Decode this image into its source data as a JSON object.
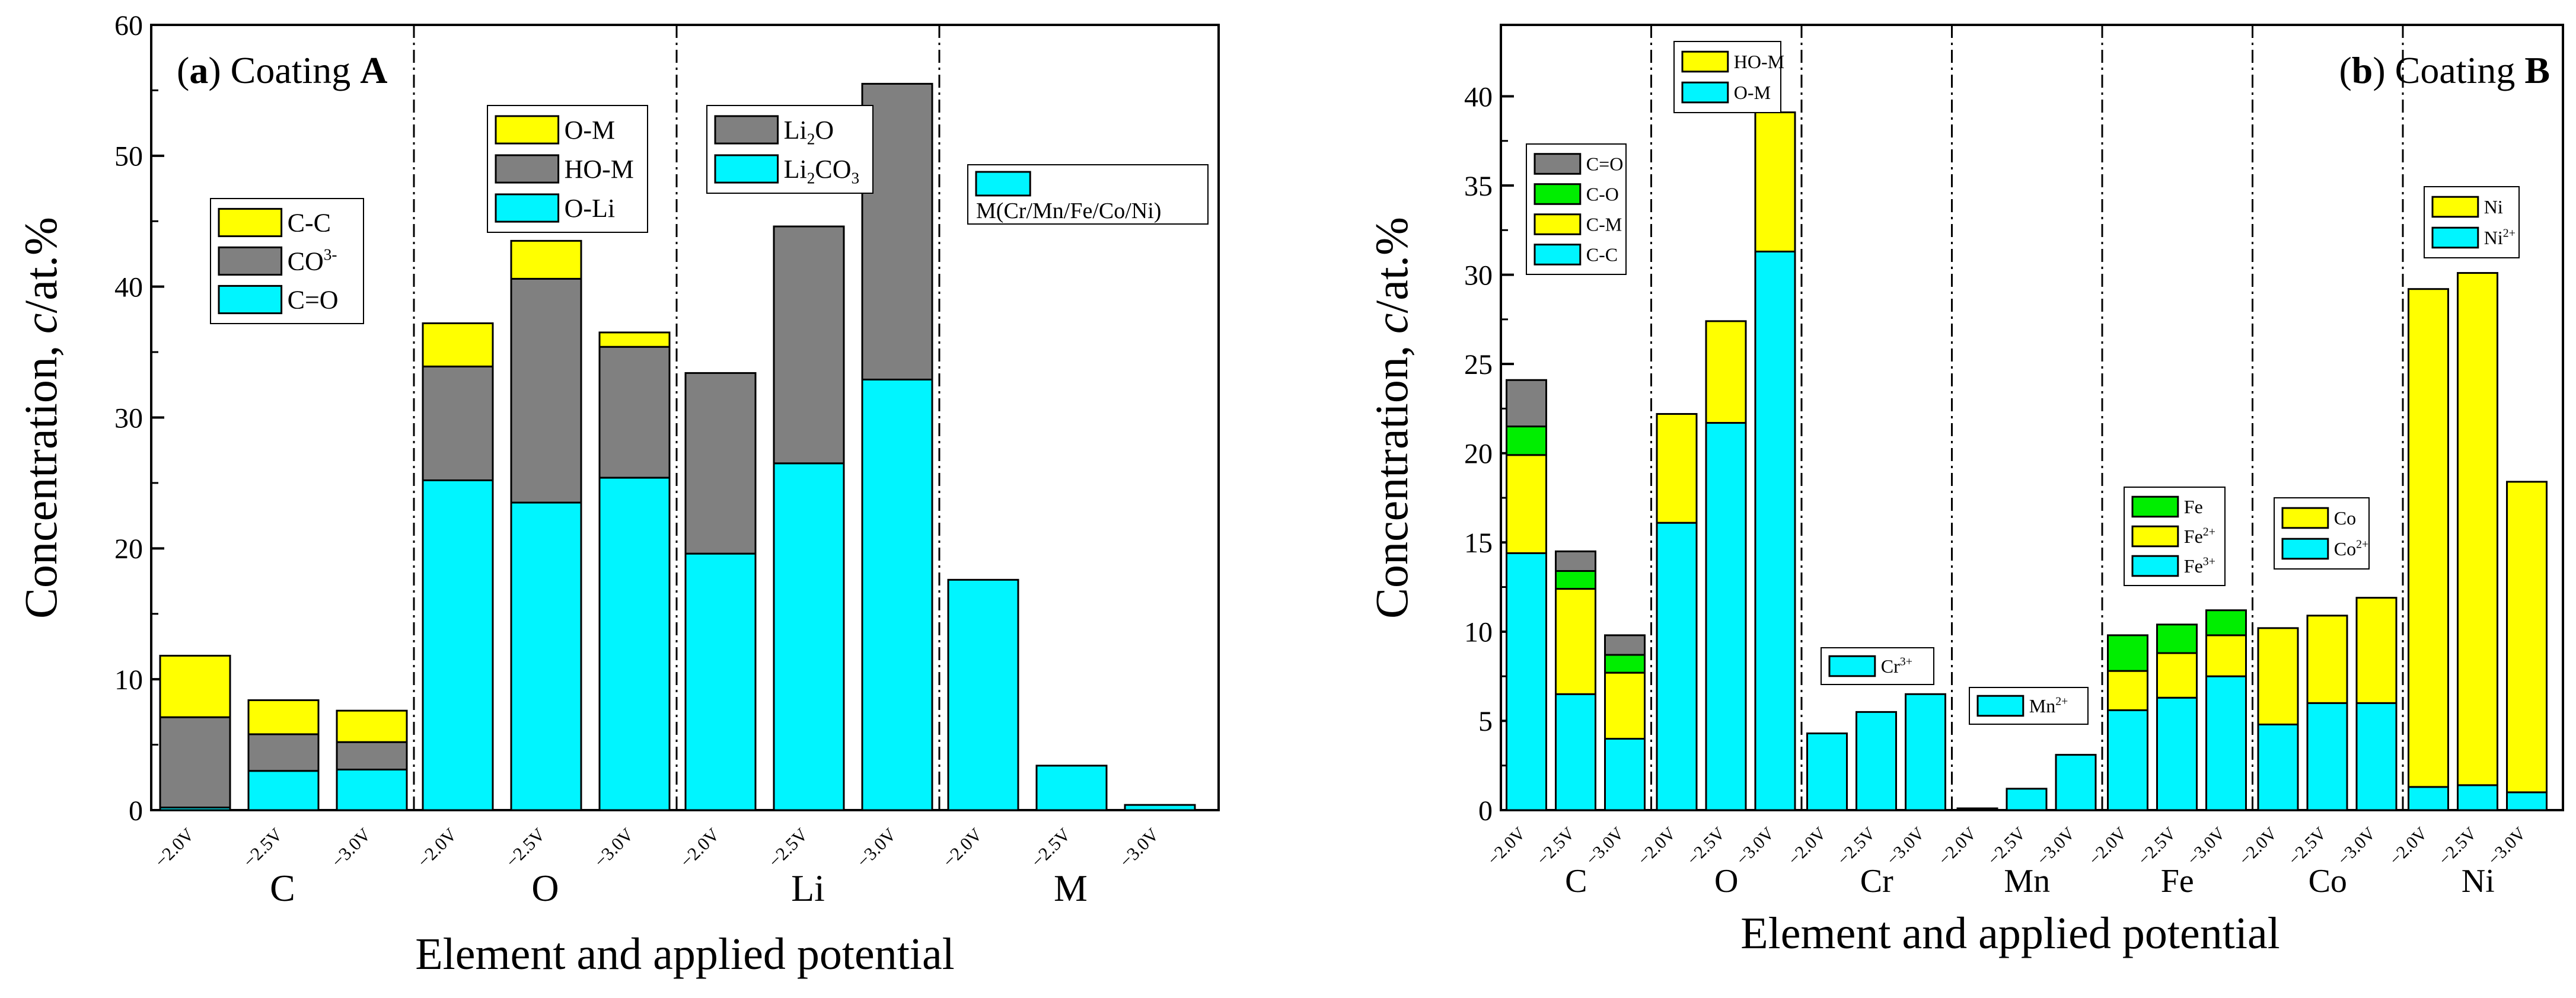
{
  "colors": {
    "cyan": "#00f5ff",
    "gray": "#808080",
    "yellow": "#ffff00",
    "green": "#00ee00"
  },
  "xlabel": "Element and applied potential",
  "ylabel_main": "Concentration, ",
  "ylabel_italic": "c",
  "ylabel_end": "/at.%",
  "potentials": [
    "−2.0V",
    "−2.5V",
    "−3.0V"
  ],
  "chart_data": [
    {
      "type": "bar",
      "stacked": true,
      "panel_letter": "a",
      "title_text": "Coating",
      "coating": "A",
      "ylim": [
        0,
        60
      ],
      "yticks": [
        0,
        10,
        20,
        30,
        40,
        50,
        60
      ],
      "groups": [
        {
          "name": "C",
          "components": [
            {
              "name": "C=O",
              "color": "cyan"
            },
            {
              "name": "CO3-",
              "color": "gray"
            },
            {
              "name": "C-C",
              "color": "yellow"
            }
          ],
          "values": [
            [
              0.2,
              6.9,
              4.7
            ],
            [
              3.0,
              2.8,
              2.6
            ],
            [
              3.1,
              2.1,
              2.4
            ]
          ]
        },
        {
          "name": "O",
          "components": [
            {
              "name": "O-Li",
              "color": "cyan"
            },
            {
              "name": "HO-M",
              "color": "gray"
            },
            {
              "name": "O-M",
              "color": "yellow"
            }
          ],
          "values": [
            [
              25.2,
              8.7,
              3.3
            ],
            [
              23.5,
              17.1,
              2.9
            ],
            [
              25.4,
              10.0,
              1.1
            ]
          ]
        },
        {
          "name": "Li",
          "components": [
            {
              "name": "Li2CO3",
              "color": "cyan"
            },
            {
              "name": "Li2O",
              "color": "gray"
            }
          ],
          "values": [
            [
              19.6,
              13.8
            ],
            [
              26.5,
              18.1
            ],
            [
              32.9,
              22.6
            ]
          ]
        },
        {
          "name": "M",
          "components": [
            {
              "name": "M(Cr/Mn/Fe/Co/Ni)",
              "color": "cyan"
            }
          ],
          "values": [
            [
              17.6
            ],
            [
              3.4
            ],
            [
              0.4
            ]
          ]
        }
      ],
      "legends": [
        {
          "entries": [
            "C-C",
            "CO3-",
            "C=O"
          ],
          "colors": [
            "yellow",
            "gray",
            "cyan"
          ]
        },
        {
          "entries": [
            "O-M",
            "HO-M",
            "O-Li"
          ],
          "colors": [
            "yellow",
            "gray",
            "cyan"
          ]
        },
        {
          "entries": [
            "Li2O",
            "Li2CO3"
          ],
          "colors": [
            "gray",
            "cyan"
          ]
        },
        {
          "entries": [
            "M(Cr/Mn/Fe/Co/Ni)"
          ],
          "colors": [
            "cyan"
          ]
        }
      ]
    },
    {
      "type": "bar",
      "stacked": true,
      "panel_letter": "b",
      "title_text": "Coating",
      "coating": "B",
      "ylim": [
        0,
        44
      ],
      "yticks": [
        0,
        5,
        10,
        15,
        20,
        25,
        30,
        35,
        40
      ],
      "groups": [
        {
          "name": "C",
          "components": [
            {
              "name": "C-C",
              "color": "cyan"
            },
            {
              "name": "C-M",
              "color": "yellow"
            },
            {
              "name": "C-O",
              "color": "green"
            },
            {
              "name": "C=O",
              "color": "gray"
            }
          ],
          "values": [
            [
              14.4,
              5.5,
              1.6,
              2.6
            ],
            [
              6.5,
              5.9,
              1.0,
              1.1
            ],
            [
              4.0,
              3.7,
              1.0,
              1.1
            ]
          ]
        },
        {
          "name": "O",
          "components": [
            {
              "name": "O-M",
              "color": "cyan"
            },
            {
              "name": "HO-M",
              "color": "yellow"
            }
          ],
          "values": [
            [
              16.1,
              6.1
            ],
            [
              21.7,
              5.7
            ],
            [
              31.3,
              7.8
            ]
          ]
        },
        {
          "name": "Cr",
          "components": [
            {
              "name": "Cr3+",
              "color": "cyan"
            }
          ],
          "values": [
            [
              4.3
            ],
            [
              5.5
            ],
            [
              6.5
            ]
          ]
        },
        {
          "name": "Mn",
          "components": [
            {
              "name": "Mn2+",
              "color": "cyan"
            }
          ],
          "values": [
            [
              0.1
            ],
            [
              1.2
            ],
            [
              3.1
            ]
          ]
        },
        {
          "name": "Fe",
          "components": [
            {
              "name": "Fe3+",
              "color": "cyan"
            },
            {
              "name": "Fe2+",
              "color": "yellow"
            },
            {
              "name": "Fe",
              "color": "green"
            }
          ],
          "values": [
            [
              5.6,
              2.2,
              2.0
            ],
            [
              6.3,
              2.5,
              1.6
            ],
            [
              7.5,
              2.3,
              1.4
            ]
          ]
        },
        {
          "name": "Co",
          "components": [
            {
              "name": "Co2+",
              "color": "cyan"
            },
            {
              "name": "Co",
              "color": "yellow"
            }
          ],
          "values": [
            [
              4.8,
              5.4
            ],
            [
              6.0,
              4.9
            ],
            [
              6.0,
              5.9
            ]
          ]
        },
        {
          "name": "Ni",
          "components": [
            {
              "name": "Ni2+",
              "color": "cyan"
            },
            {
              "name": "Ni",
              "color": "yellow"
            }
          ],
          "values": [
            [
              1.3,
              27.9
            ],
            [
              1.4,
              28.7
            ],
            [
              1.0,
              17.4
            ]
          ]
        }
      ],
      "legends": [
        {
          "entries": [
            "C=O",
            "C-O",
            "C-M",
            "C-C"
          ],
          "colors": [
            "gray",
            "green",
            "yellow",
            "cyan"
          ]
        },
        {
          "entries": [
            "HO-M",
            "O-M"
          ],
          "colors": [
            "yellow",
            "cyan"
          ]
        },
        {
          "entries": [
            "Cr3+"
          ],
          "colors": [
            "cyan"
          ]
        },
        {
          "entries": [
            "Mn2+"
          ],
          "colors": [
            "cyan"
          ]
        },
        {
          "entries": [
            "Fe",
            "Fe2+",
            "Fe3+"
          ],
          "colors": [
            "green",
            "yellow",
            "cyan"
          ]
        },
        {
          "entries": [
            "Co",
            "Co2+"
          ],
          "colors": [
            "yellow",
            "cyan"
          ]
        },
        {
          "entries": [
            "Ni",
            "Ni2+"
          ],
          "colors": [
            "yellow",
            "cyan"
          ]
        }
      ]
    }
  ]
}
